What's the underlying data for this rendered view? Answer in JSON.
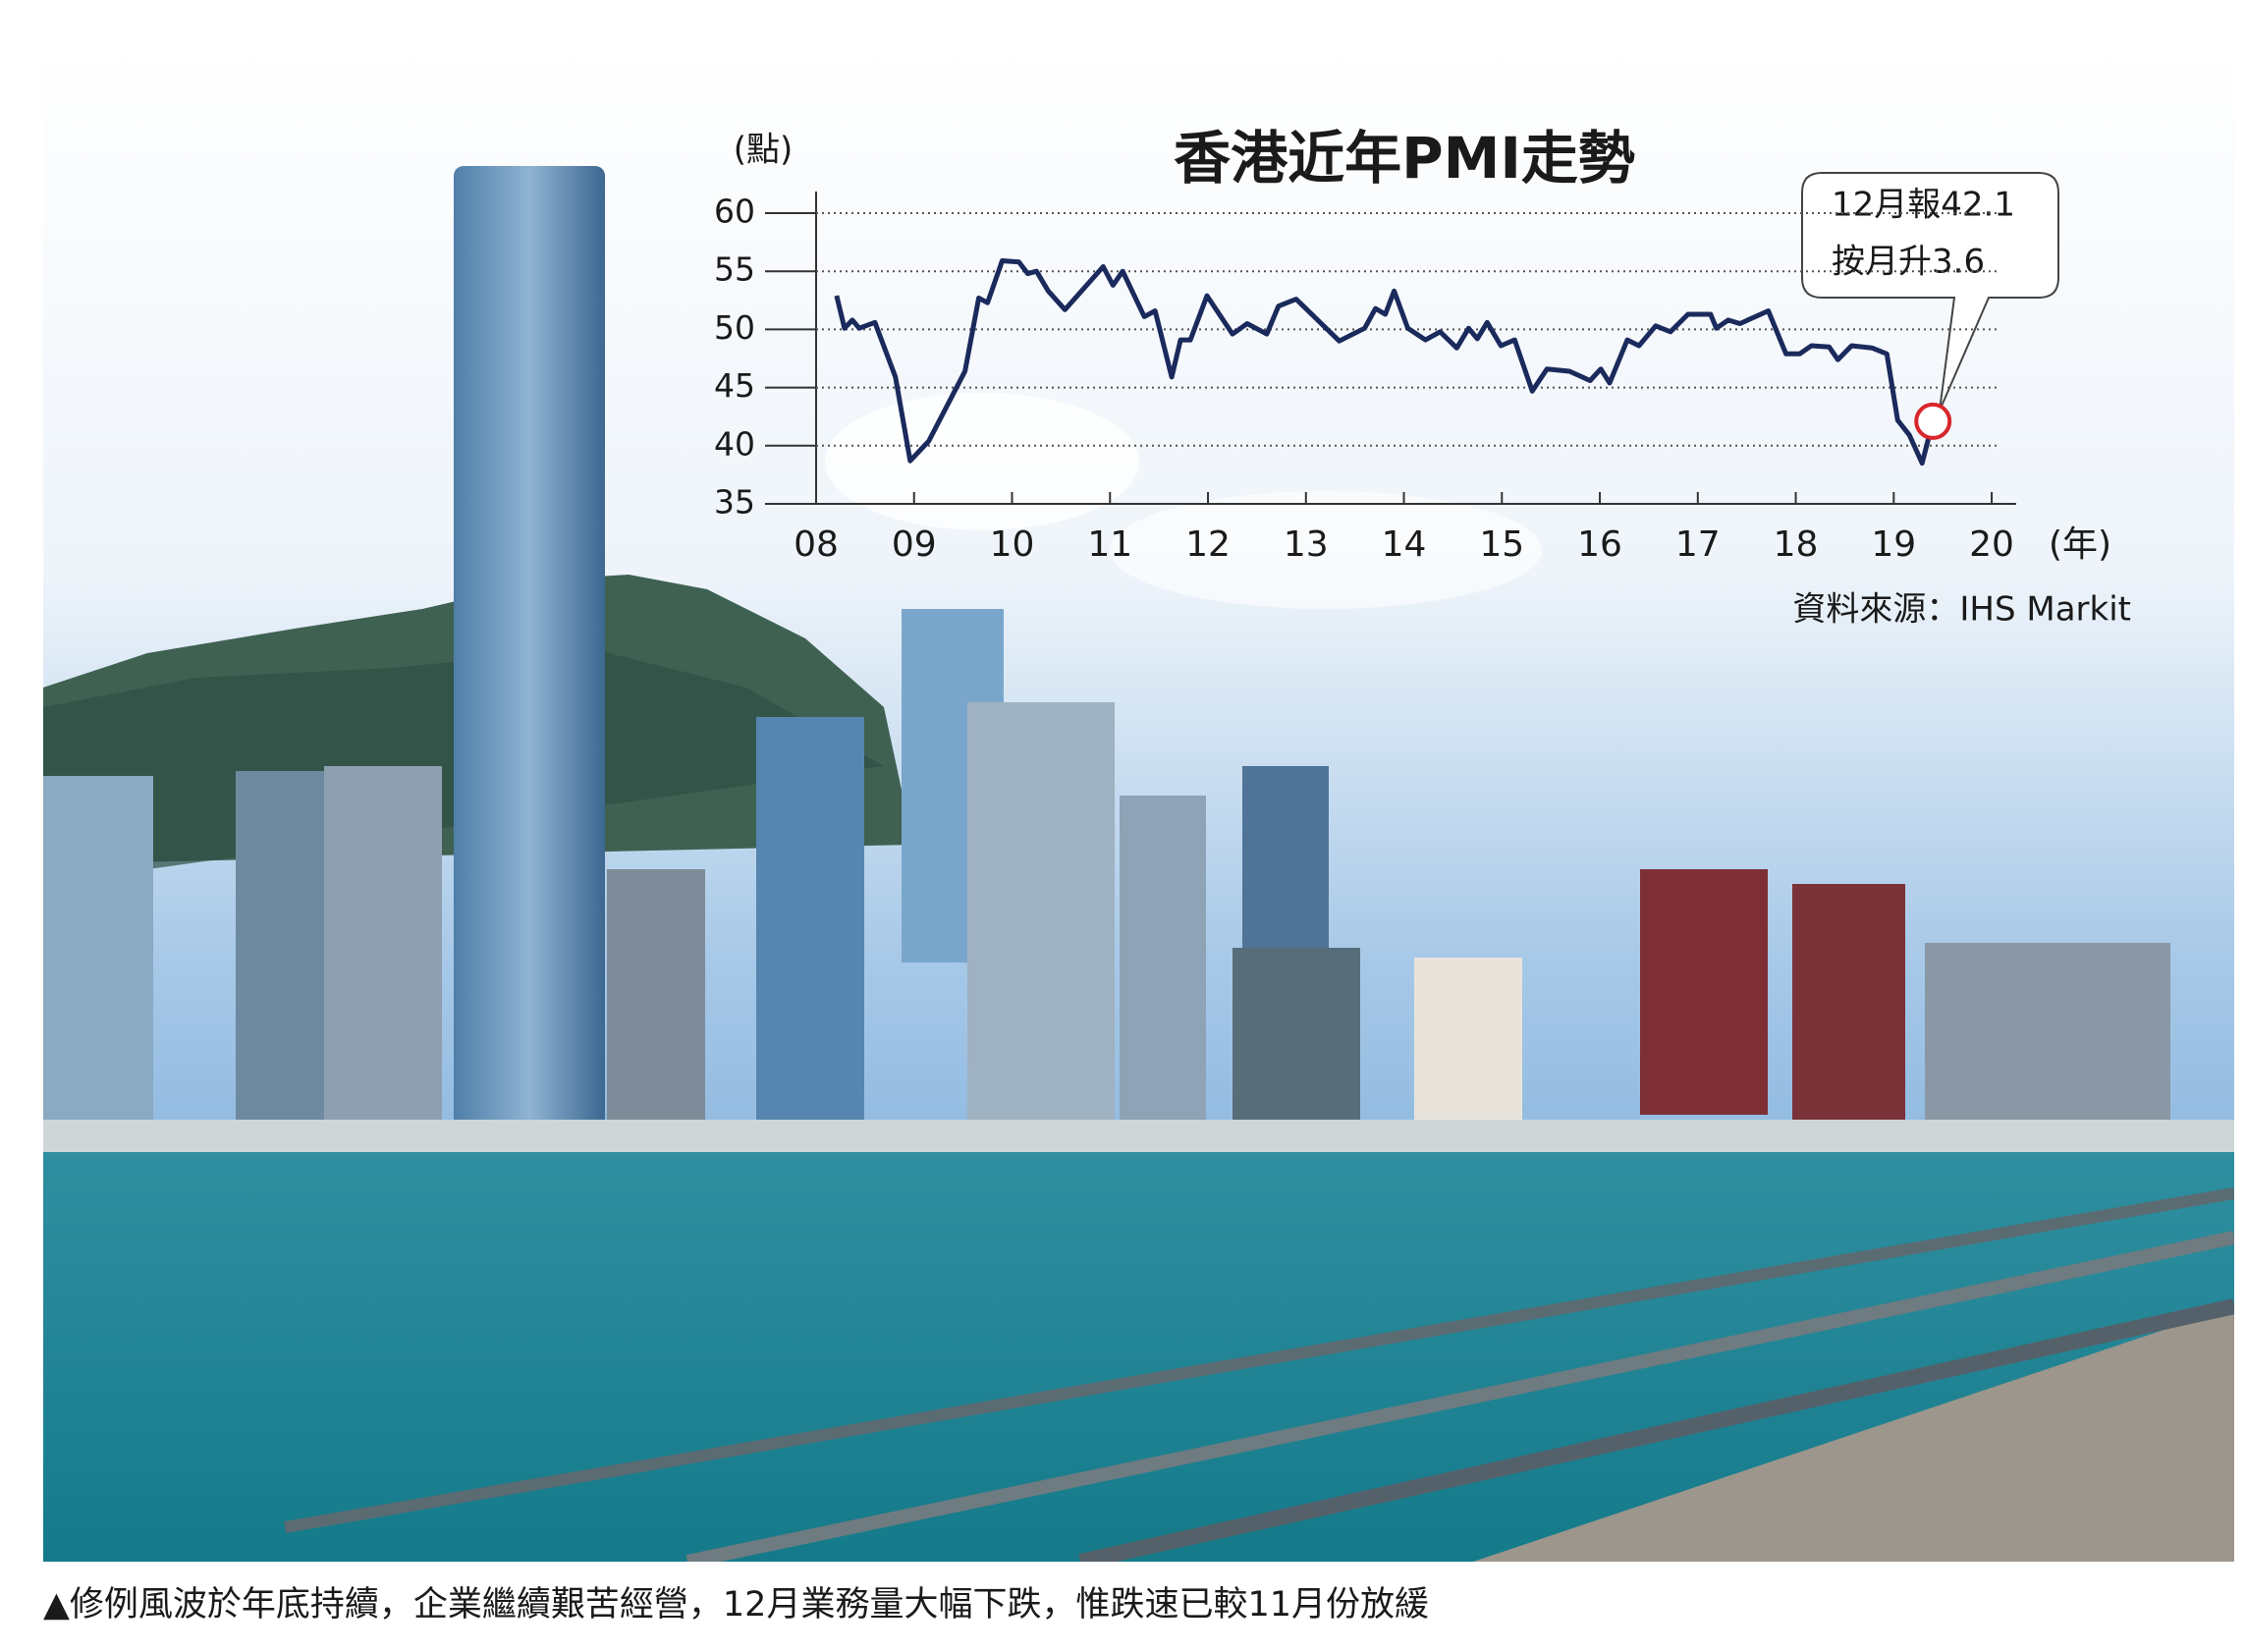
{
  "chart_data": {
    "type": "line",
    "title": "香港近年PMI走勢",
    "y_label": "(點)",
    "x_label": "(年)",
    "annotation": [
      "12月報42.1",
      "按月升3.6"
    ],
    "source": "資料來源：IHS Markit",
    "color": "#1b2a5c",
    "grid": true,
    "xlim": [
      2008,
      2020.25
    ],
    "ylim": [
      35,
      60
    ],
    "xticks": [
      {
        "value": 2008,
        "label": "08"
      },
      {
        "value": 2009,
        "label": "09"
      },
      {
        "value": 2010,
        "label": "10"
      },
      {
        "value": 2011,
        "label": "11"
      },
      {
        "value": 2012,
        "label": "12"
      },
      {
        "value": 2013,
        "label": "13"
      },
      {
        "value": 2014,
        "label": "14"
      },
      {
        "value": 2015,
        "label": "15"
      },
      {
        "value": 2016,
        "label": "16"
      },
      {
        "value": 2017,
        "label": "17"
      },
      {
        "value": 2018,
        "label": "18"
      },
      {
        "value": 2019,
        "label": "19"
      },
      {
        "value": 2020,
        "label": "20"
      }
    ],
    "yticks": [
      35,
      40,
      45,
      50,
      55,
      60
    ],
    "x": [
      2008.21,
      2008.29,
      2008.37,
      2008.44,
      2008.6,
      2008.81,
      2008.96,
      2009.15,
      2009.52,
      2009.66,
      2009.75,
      2009.9,
      2010.07,
      2010.16,
      2010.25,
      2010.37,
      2010.54,
      2010.93,
      2011.03,
      2011.13,
      2011.35,
      2011.46,
      2011.63,
      2011.72,
      2011.82,
      2011.99,
      2012.25,
      2012.4,
      2012.6,
      2012.72,
      2012.9,
      2013.34,
      2013.6,
      2013.71,
      2013.81,
      2013.9,
      2014.04,
      2014.22,
      2014.37,
      2014.54,
      2014.66,
      2014.75,
      2014.85,
      2014.99,
      2015.13,
      2015.31,
      2015.46,
      2015.69,
      2015.9,
      2016.01,
      2016.1,
      2016.28,
      2016.4,
      2016.57,
      2016.72,
      2016.9,
      2017.13,
      2017.19,
      2017.31,
      2017.43,
      2017.72,
      2017.9,
      2018.04,
      2018.16,
      2018.34,
      2018.43,
      2018.57,
      2018.78,
      2018.93,
      2019.04,
      2019.16,
      2019.29,
      2019.4
    ],
    "values": [
      52.9,
      50.1,
      50.8,
      50.1,
      50.6,
      45.9,
      38.7,
      40.4,
      46.4,
      52.7,
      52.3,
      55.9,
      55.8,
      54.8,
      55.0,
      53.3,
      51.7,
      55.4,
      53.8,
      55.0,
      51.1,
      51.6,
      45.9,
      49.1,
      49.1,
      52.9,
      49.6,
      50.5,
      49.6,
      52.0,
      52.6,
      49.0,
      50.1,
      51.8,
      51.3,
      53.3,
      50.1,
      49.1,
      49.8,
      48.4,
      50.1,
      49.2,
      50.6,
      48.6,
      49.1,
      44.7,
      46.6,
      46.4,
      45.6,
      46.6,
      45.4,
      49.1,
      48.6,
      50.3,
      49.8,
      51.3,
      51.3,
      50.1,
      50.8,
      50.5,
      51.6,
      47.9,
      47.9,
      48.6,
      48.5,
      47.4,
      48.6,
      48.4,
      47.9,
      42.2,
      40.9,
      38.5,
      42.1
    ]
  },
  "caption": "▲修例風波於年底持續，企業繼續艱苦經營，12月業務量大幅下跌，惟跌速已較11月份放緩"
}
